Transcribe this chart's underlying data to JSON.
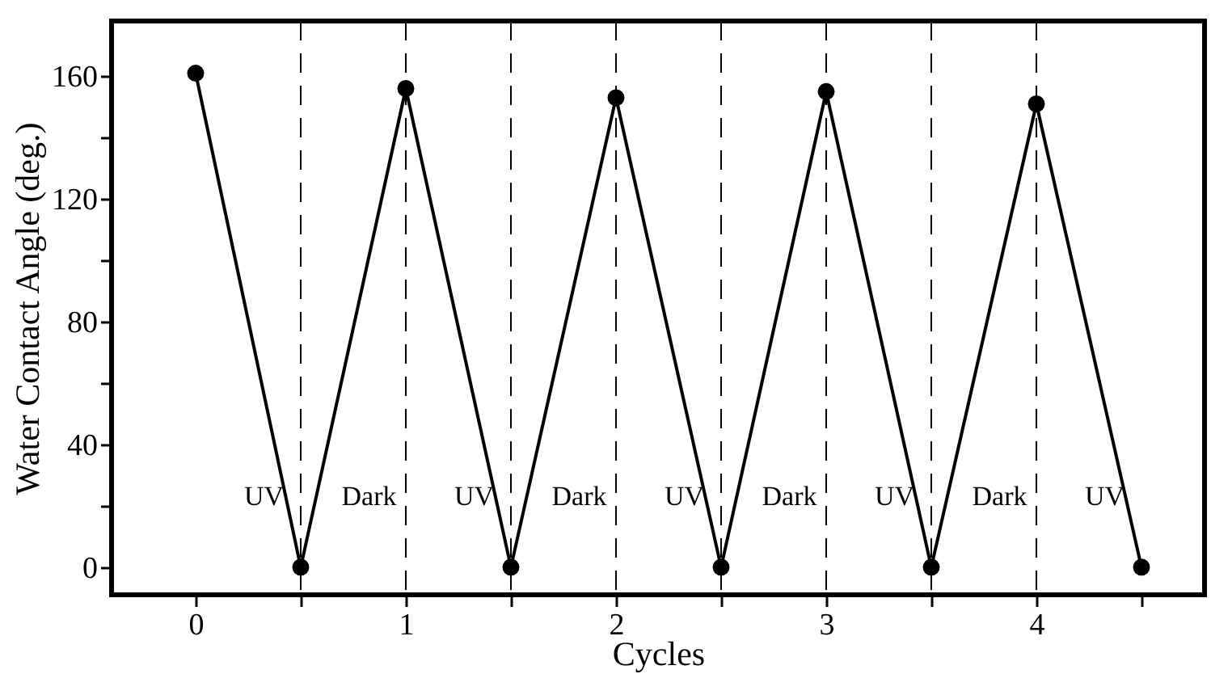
{
  "chart_data": {
    "type": "line",
    "xlabel": "Cycles",
    "ylabel": "Water Contact Angle (deg.)",
    "x": [
      0,
      0.5,
      1,
      1.5,
      2,
      2.5,
      3,
      3.5,
      4,
      4.5
    ],
    "series": [
      {
        "color": "#000000",
        "values": [
          161,
          0,
          156,
          0,
          153,
          0,
          155,
          0,
          151,
          0
        ]
      }
    ],
    "xlim": [
      -0.4,
      4.8
    ],
    "ylim": [
      -9,
      178
    ],
    "xticks": [
      0,
      {
        "value": 0.5,
        "label": null
      },
      1,
      {
        "value": 1.5,
        "label": null
      },
      2,
      {
        "value": 2.5,
        "label": null
      },
      3,
      {
        "value": 3.5,
        "label": null
      },
      4,
      {
        "value": 4.5,
        "label": null
      }
    ],
    "yticks": [
      0,
      {
        "value": 20,
        "label": null
      },
      40,
      {
        "value": 60,
        "label": null
      },
      80,
      {
        "value": 100,
        "label": null
      },
      120,
      {
        "value": 140,
        "label": null
      },
      160
    ],
    "ref_lines": [
      {
        "axis": "x",
        "value": 0.5,
        "line_style": "dashed"
      },
      {
        "axis": "x",
        "value": 1,
        "line_style": "dashed"
      },
      {
        "axis": "x",
        "value": 1.5,
        "line_style": "dashed"
      },
      {
        "axis": "x",
        "value": 2,
        "line_style": "dashed"
      },
      {
        "axis": "x",
        "value": 2.5,
        "line_style": "dashed"
      },
      {
        "axis": "x",
        "value": 3,
        "line_style": "dashed"
      },
      {
        "axis": "x",
        "value": 3.5,
        "line_style": "dashed"
      },
      {
        "axis": "x",
        "value": 4,
        "line_style": "dashed"
      }
    ],
    "annotations": [
      "UV",
      "Dark",
      "UV",
      "Dark",
      "UV",
      "Dark",
      "UV",
      "Dark",
      "UV"
    ],
    "marker": "circle",
    "line_style": "solid"
  }
}
